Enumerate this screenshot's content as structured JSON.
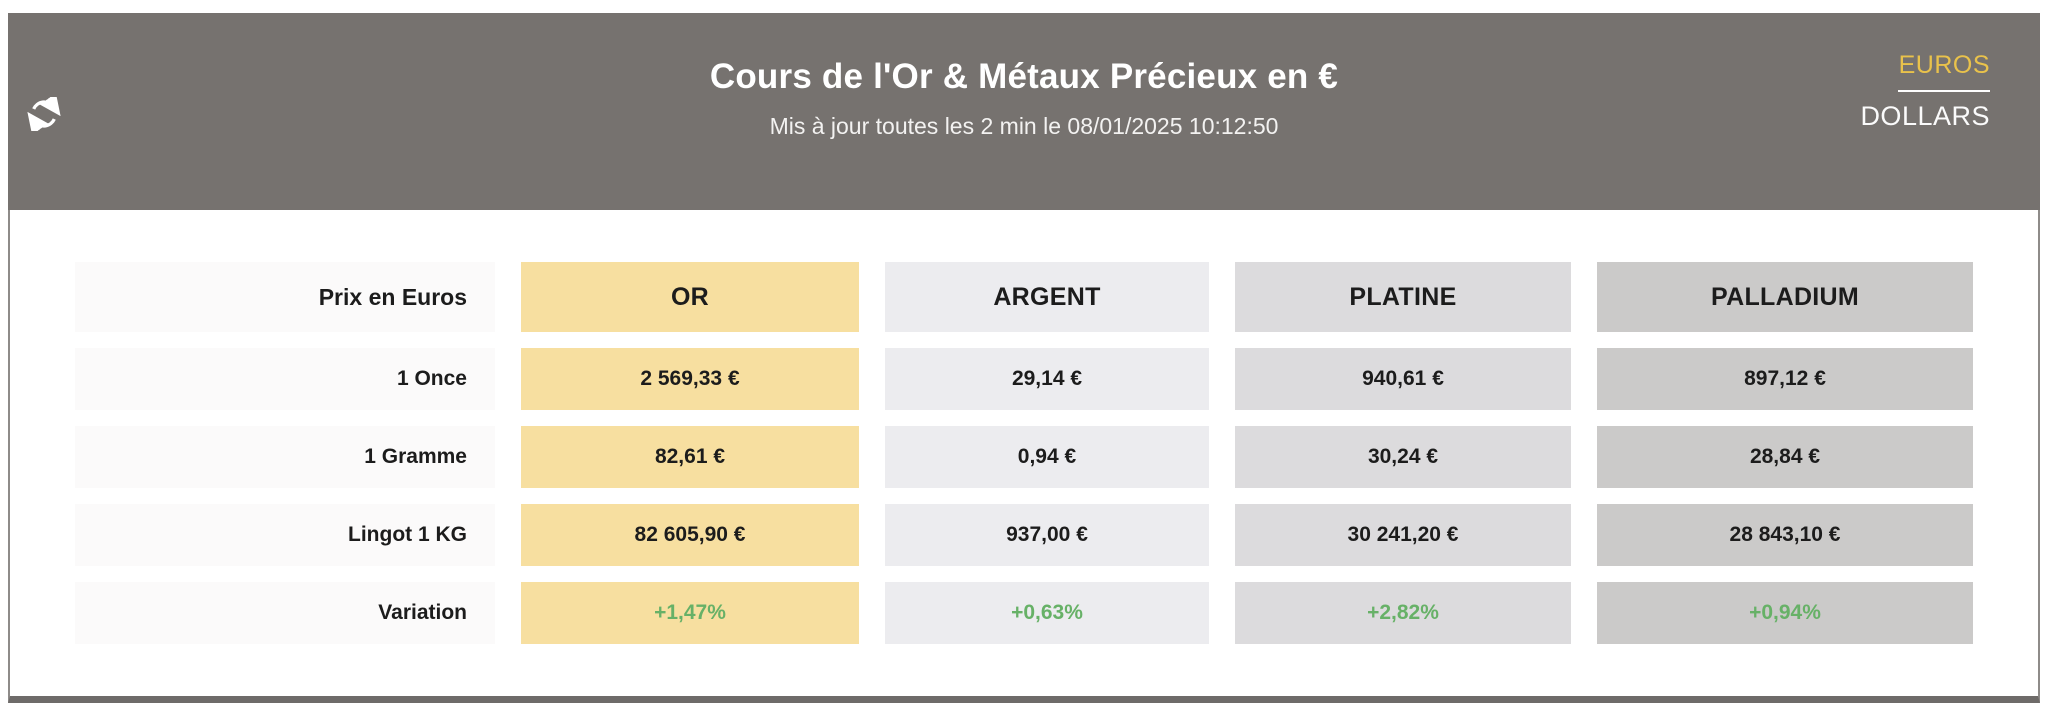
{
  "header": {
    "title": "Cours de l'Or & Métaux Précieux en €",
    "subtitle": "Mis à jour toutes les 2 min le 08/01/2025 10:12:50",
    "refresh_icon": "refresh-sync-arrows",
    "currency_toggle": {
      "selected": "EUROS",
      "unselected": "DOLLARS",
      "selected_color": "#e9c24b",
      "unselected_color": "#fbfbfb"
    },
    "background_color": "#76726f"
  },
  "table": {
    "corner_label": "Prix en Euros",
    "columns": [
      {
        "label": "OR",
        "bg": "#f7dfa0"
      },
      {
        "label": "ARGENT",
        "bg": "#ececef"
      },
      {
        "label": "PLATINE",
        "bg": "#dcdbdd"
      },
      {
        "label": "PALLADIUM",
        "bg": "#cbcac9"
      }
    ],
    "rows": [
      {
        "label": "1 Once",
        "type": "price",
        "values": [
          "2 569,33 €",
          "29,14 €",
          "940,61 €",
          "897,12 €"
        ]
      },
      {
        "label": "1 Gramme",
        "type": "price",
        "values": [
          "82,61 €",
          "0,94 €",
          "30,24 €",
          "28,84 €"
        ]
      },
      {
        "label": "Lingot 1 KG",
        "type": "price",
        "values": [
          "82 605,90 €",
          "937,00 €",
          "30 241,20 €",
          "28 843,10 €"
        ]
      },
      {
        "label": "Variation",
        "type": "variation",
        "values": [
          "+1,47%",
          "+0,63%",
          "+2,82%",
          "+0,94%"
        ]
      }
    ],
    "label_column_bg": "#fbfafa",
    "variation_color": "#67b167"
  }
}
